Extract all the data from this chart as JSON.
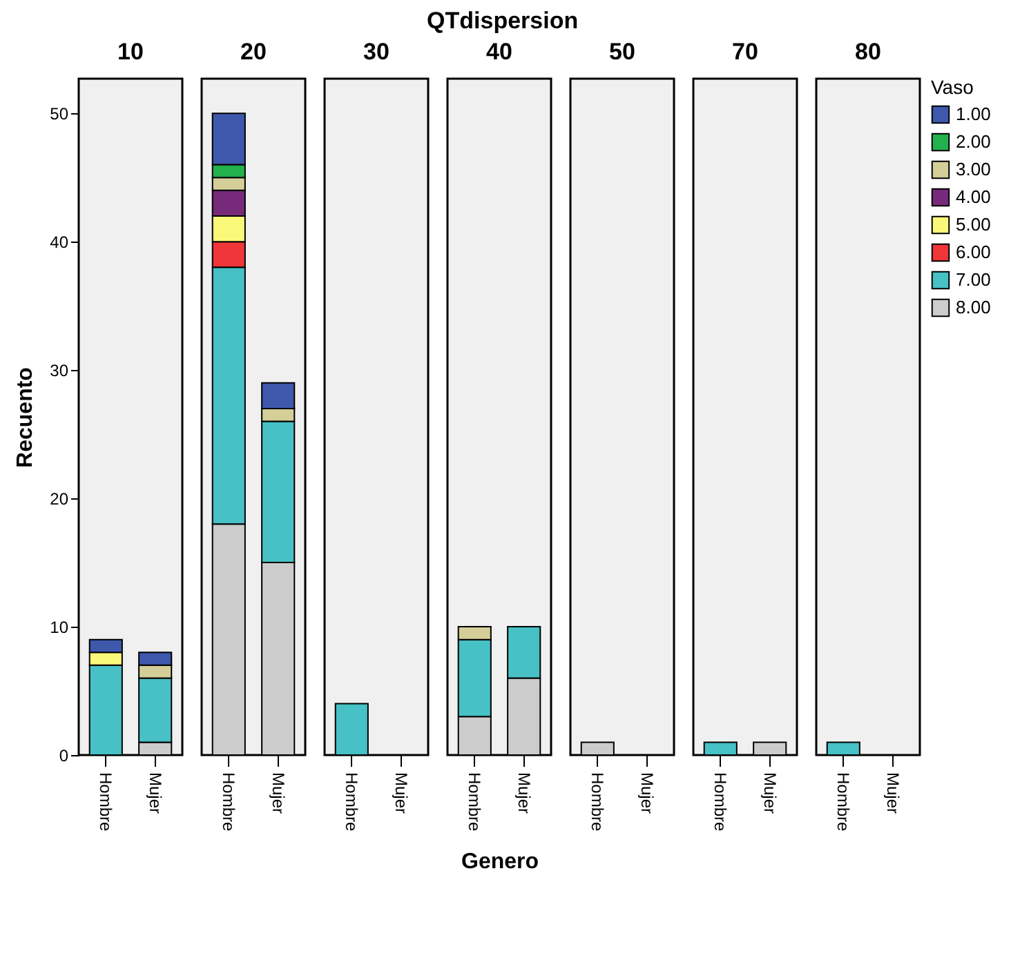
{
  "chart_data": [
    {
      "type": "bar",
      "stacked": true,
      "title": "10",
      "legend": "right",
      "legend_title": "Vaso",
      "annotations": [
        "QTdispersion"
      ],
      "ylabel": "Recuento",
      "categories": [
        "Hombre",
        "Mujer"
      ],
      "ylim": [
        0,
        52.7
      ],
      "yticks": [
        0,
        10,
        20,
        30,
        40,
        50
      ],
      "series": [
        {
          "name": "8.00",
          "color": "#cccccc",
          "values": [
            null,
            1
          ]
        },
        {
          "name": "7.00",
          "color": "#47c1c5",
          "values": [
            7,
            5
          ]
        },
        {
          "name": "6.00",
          "color": "#ef3638",
          "values": [
            null,
            null
          ]
        },
        {
          "name": "5.00",
          "color": "#fbf779",
          "values": [
            1,
            null
          ]
        },
        {
          "name": "4.00",
          "color": "#772a7a",
          "values": [
            null,
            null
          ]
        },
        {
          "name": "3.00",
          "color": "#d4ce98",
          "values": [
            null,
            1
          ]
        },
        {
          "name": "2.00",
          "color": "#22b14c",
          "values": [
            null,
            null
          ]
        },
        {
          "name": "1.00",
          "color": "#3e58ac",
          "values": [
            1,
            1
          ]
        }
      ]
    },
    {
      "type": "bar",
      "stacked": true,
      "title": "20",
      "tick_labels": "x",
      "categories": [
        "Hombre",
        "Mujer"
      ],
      "ylim": [
        0,
        52.7
      ],
      "series": [
        {
          "color": "#cccccc",
          "values": [
            18,
            15
          ]
        },
        {
          "color": "#47c1c5",
          "values": [
            20,
            11
          ]
        },
        {
          "color": "#ef3638",
          "values": [
            2,
            null
          ]
        },
        {
          "color": "#fbf779",
          "values": [
            2,
            null
          ]
        },
        {
          "color": "#772a7a",
          "values": [
            2,
            null
          ]
        },
        {
          "color": "#d4ce98",
          "values": [
            1,
            1
          ]
        },
        {
          "color": "#22b14c",
          "values": [
            1,
            null
          ]
        },
        {
          "color": "#3e58ac",
          "values": [
            4,
            2
          ]
        }
      ]
    },
    {
      "type": "bar",
      "stacked": true,
      "title": "30",
      "tick_labels": "x",
      "categories": [
        "Hombre",
        "Mujer"
      ],
      "ylim": [
        0,
        52.7
      ],
      "series": [
        {
          "color": "#47c1c5",
          "values": [
            4,
            null
          ]
        }
      ]
    },
    {
      "type": "bar",
      "stacked": true,
      "title": "40",
      "xlabel": "Genero",
      "tick_labels": "x",
      "categories": [
        "Hombre",
        "Mujer"
      ],
      "ylim": [
        0,
        52.7
      ],
      "series": [
        {
          "color": "#cccccc",
          "values": [
            3,
            6
          ]
        },
        {
          "color": "#47c1c5",
          "values": [
            6,
            4
          ]
        },
        {
          "color": "#d4ce98",
          "values": [
            1,
            null
          ]
        }
      ]
    },
    {
      "type": "bar",
      "stacked": true,
      "title": "50",
      "tick_labels": "x",
      "categories": [
        "Hombre",
        "Mujer"
      ],
      "ylim": [
        0,
        52.7
      ],
      "series": [
        {
          "color": "#cccccc",
          "values": [
            1,
            null
          ]
        }
      ]
    },
    {
      "type": "bar",
      "stacked": true,
      "title": "70",
      "tick_labels": "x",
      "categories": [
        "Hombre",
        "Mujer"
      ],
      "ylim": [
        0,
        52.7
      ],
      "series": [
        {
          "color": "#cccccc",
          "values": [
            null,
            1
          ]
        },
        {
          "color": "#47c1c5",
          "values": [
            1,
            null
          ]
        }
      ]
    },
    {
      "type": "bar",
      "stacked": true,
      "title": "80",
      "tick_labels": "x",
      "categories": [
        "Hombre",
        "Mujer"
      ],
      "ylim": [
        0,
        52.7
      ],
      "series": [
        {
          "color": "#47c1c5",
          "values": [
            1,
            null
          ]
        }
      ]
    }
  ]
}
